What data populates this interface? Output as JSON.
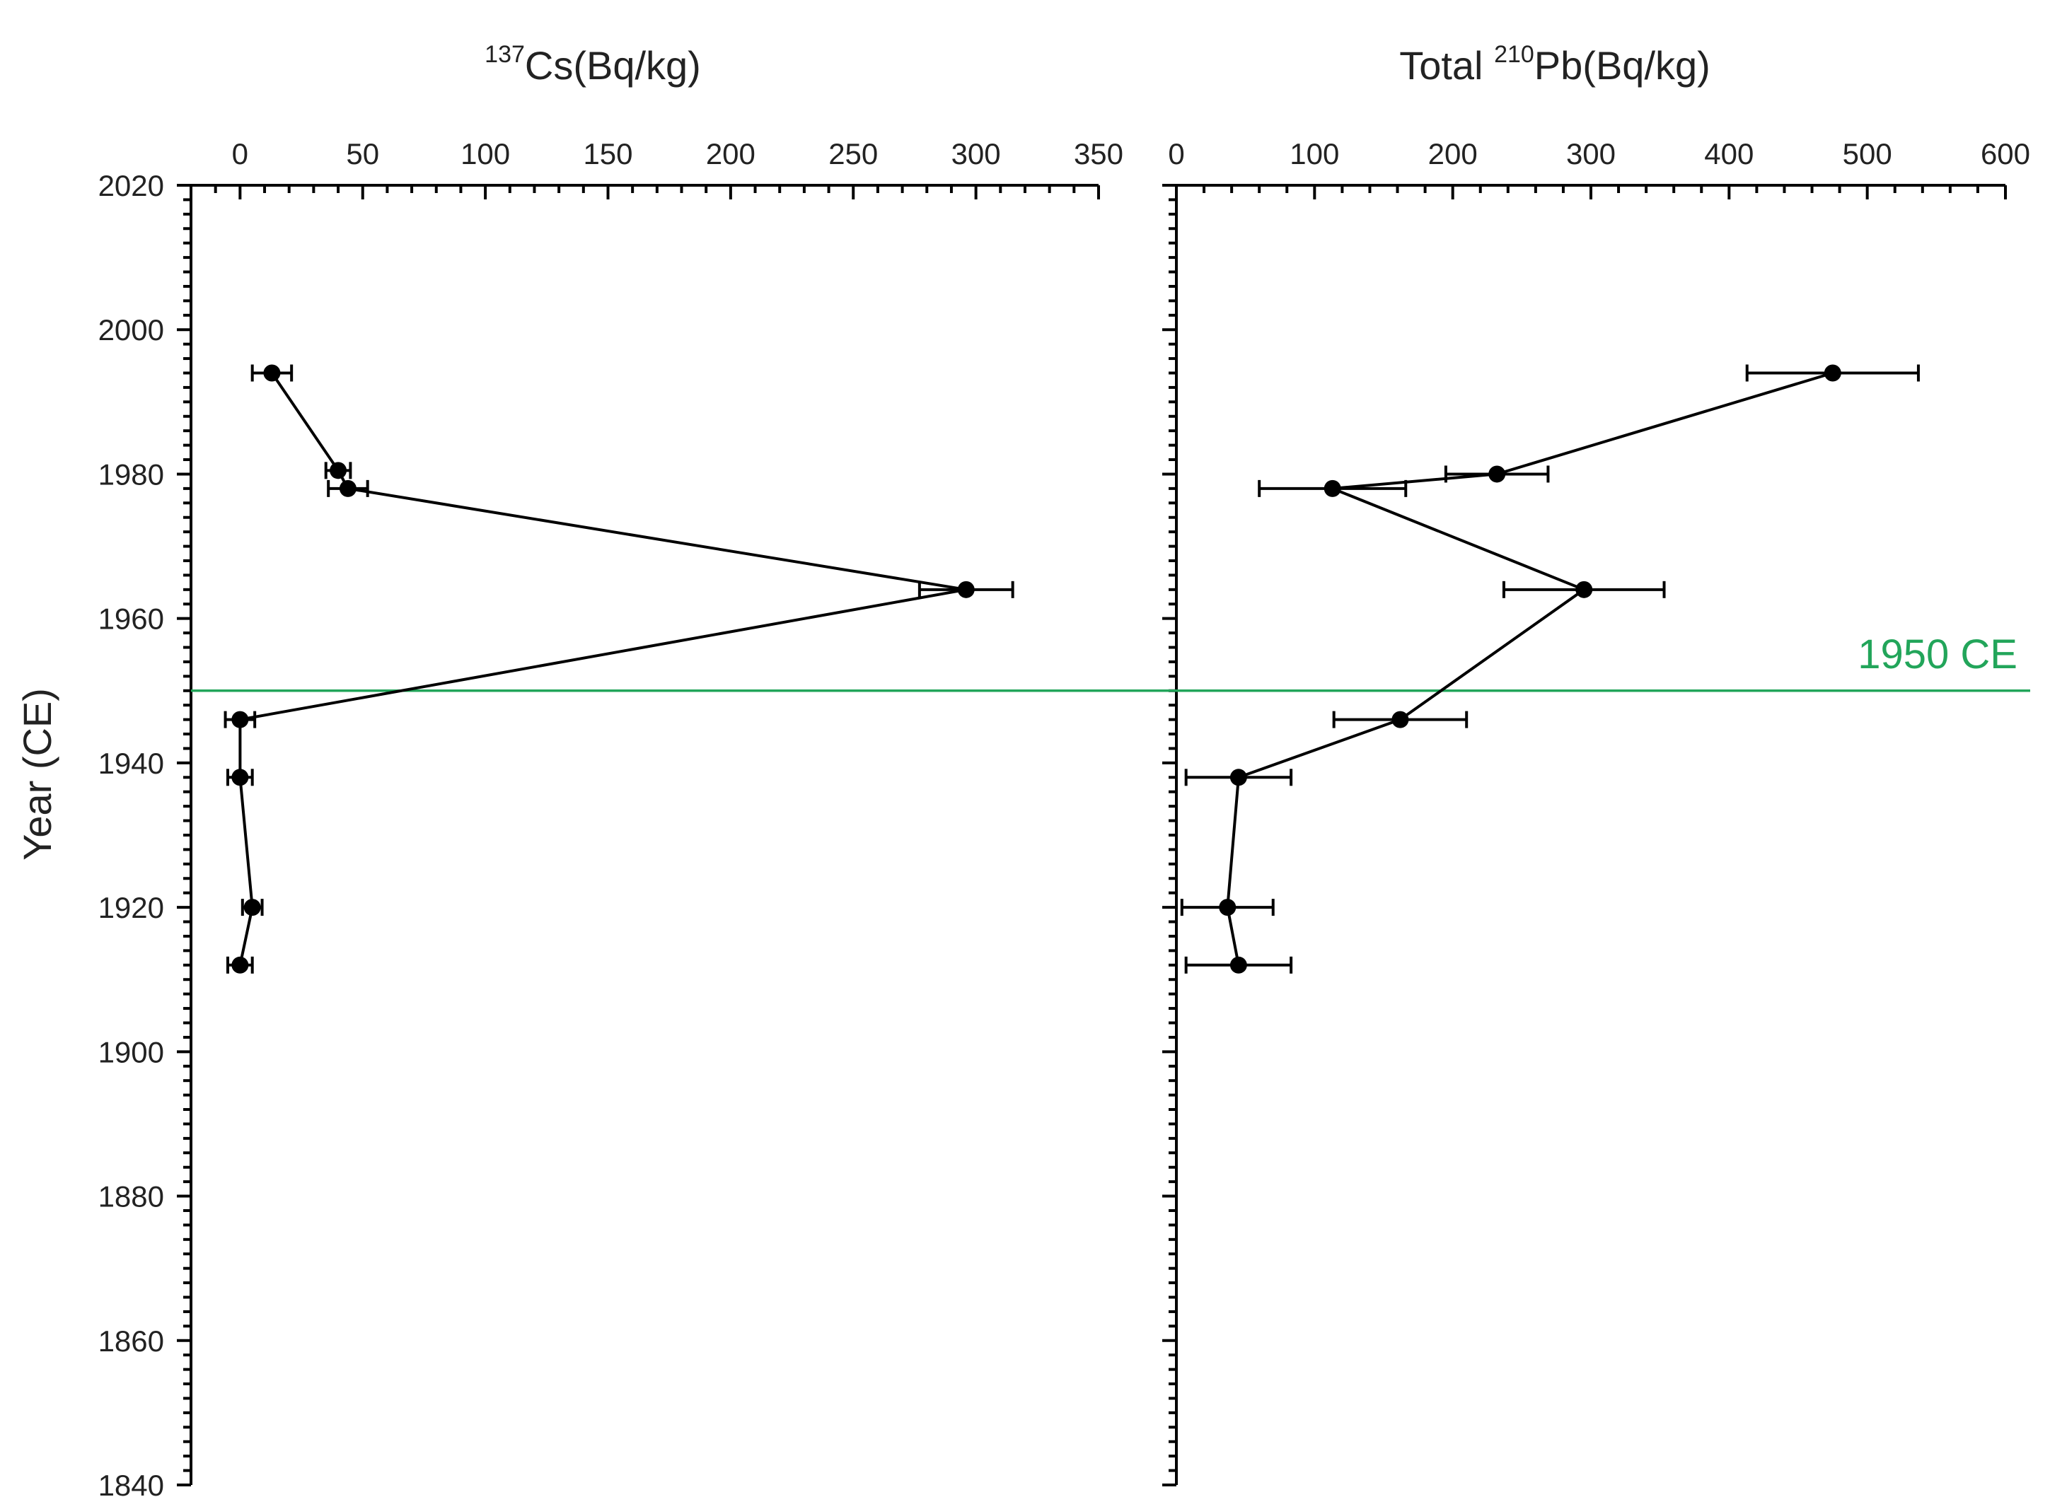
{
  "chart_data": {
    "type": "scatter",
    "y_axis": {
      "label": "Year (CE)",
      "range": [
        1840,
        2020
      ],
      "ticks": [
        "1840",
        "1860",
        "1880",
        "1900",
        "1920",
        "1940",
        "1960",
        "1980",
        "2000",
        "2020"
      ]
    },
    "panels": [
      {
        "id": "cs137",
        "title_pre": "",
        "title_sup": "137",
        "title_post": "Cs(Bq/kg)",
        "x_range": [
          -20,
          350
        ],
        "x_ticks": [
          "0",
          "50",
          "100",
          "150",
          "200",
          "250",
          "300",
          "350"
        ],
        "series": {
          "name": "137Cs",
          "points": [
            {
              "year": 1994,
              "value": 13,
              "err": 8
            },
            {
              "year": 1980.5,
              "value": 40,
              "err": 5
            },
            {
              "year": 1978,
              "value": 44,
              "err": 8
            },
            {
              "year": 1964,
              "value": 296,
              "err": 19
            },
            {
              "year": 1946,
              "value": 0,
              "err": 6
            },
            {
              "year": 1938,
              "value": 0,
              "err": 5
            },
            {
              "year": 1920,
              "value": 5,
              "err": 4
            },
            {
              "year": 1912,
              "value": 0,
              "err": 5
            }
          ]
        }
      },
      {
        "id": "pb210",
        "title_pre": "Total ",
        "title_sup": "210",
        "title_post": "Pb(Bq/kg)",
        "x_range": [
          0,
          600
        ],
        "x_ticks": [
          "0",
          "100",
          "200",
          "300",
          "400",
          "500",
          "600"
        ],
        "series": {
          "name": "Total 210Pb",
          "points": [
            {
              "year": 1994,
              "value": 475,
              "err": 62
            },
            {
              "year": 1980,
              "value": 232,
              "err": 37
            },
            {
              "year": 1978,
              "value": 113,
              "err": 53
            },
            {
              "year": 1964,
              "value": 295,
              "err": 58
            },
            {
              "year": 1946,
              "value": 162,
              "err": 48
            },
            {
              "year": 1938,
              "value": 45,
              "err": 38
            },
            {
              "year": 1920,
              "value": 37,
              "err": 33
            },
            {
              "year": 1912,
              "value": 45,
              "err": 38
            }
          ]
        }
      }
    ],
    "reference_line": {
      "year": 1950,
      "label": "1950 CE",
      "color": "#22a55a"
    },
    "line_color": "#000000"
  }
}
